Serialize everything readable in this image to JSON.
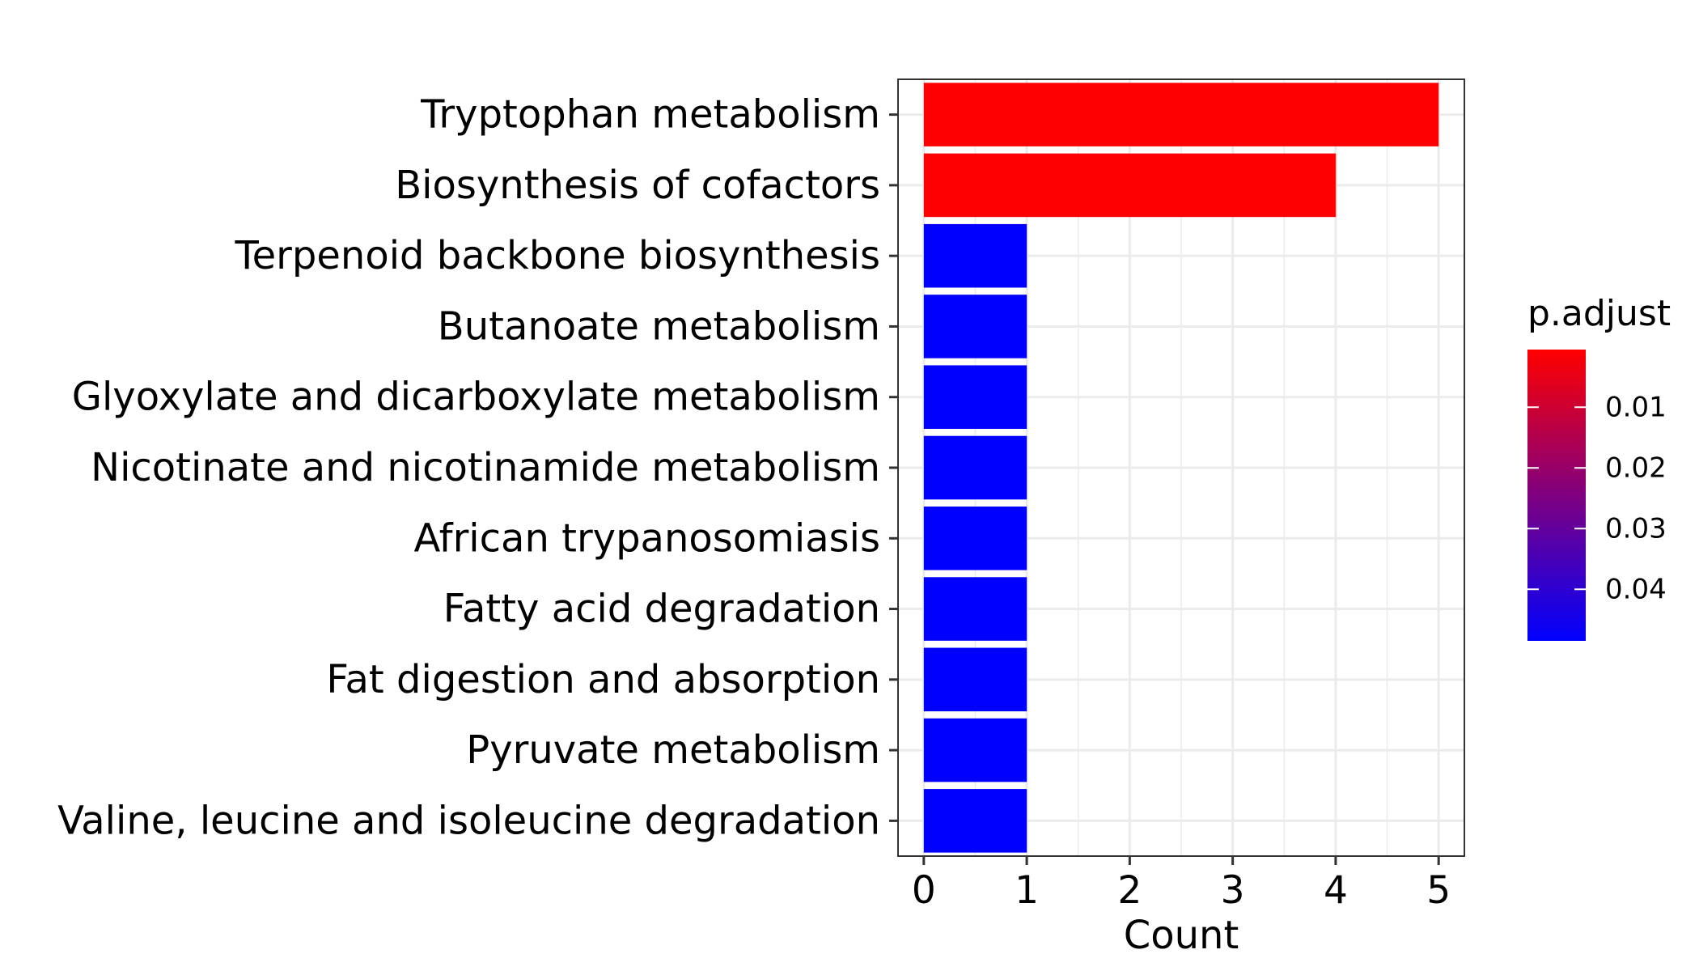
{
  "chart_data": {
    "type": "bar",
    "orientation": "horizontal",
    "categories": [
      "Tryptophan metabolism",
      "Biosynthesis of cofactors",
      "Terpenoid backbone biosynthesis",
      "Butanoate metabolism",
      "Glyoxylate and dicarboxylate metabolism",
      "Nicotinate and nicotinamide metabolism",
      "African trypanosomiasis",
      "Fatty acid degradation",
      "Fat digestion and absorption",
      "Pyruvate metabolism",
      "Valine, leucine and isoleucine degradation"
    ],
    "values": [
      5,
      4,
      1,
      1,
      1,
      1,
      1,
      1,
      1,
      1,
      1
    ],
    "p_adjust": [
      0.0005,
      0.0005,
      0.0485,
      0.0485,
      0.0485,
      0.0485,
      0.0485,
      0.0485,
      0.0485,
      0.0485,
      0.0485
    ],
    "xlabel": "Count",
    "ylabel": "",
    "xlim": [
      -0.25,
      5.25
    ],
    "x_ticks": [
      "0",
      "1",
      "2",
      "3",
      "4",
      "5"
    ],
    "grid": true,
    "legend": {
      "title": "p.adjust",
      "placement": "right",
      "type": "colorbar",
      "ticks": [
        "0.01",
        "0.02",
        "0.03",
        "0.04"
      ],
      "tick_values": [
        0.01,
        0.02,
        0.03,
        0.04
      ],
      "range": [
        0.0005,
        0.0485
      ],
      "low_color": "#FF0000",
      "high_color": "#0000FF"
    },
    "colors": {
      "low_p": "#FF0000",
      "high_p": "#0000FF",
      "grid": "#EBEBEB",
      "panel_border": "#333333"
    }
  }
}
